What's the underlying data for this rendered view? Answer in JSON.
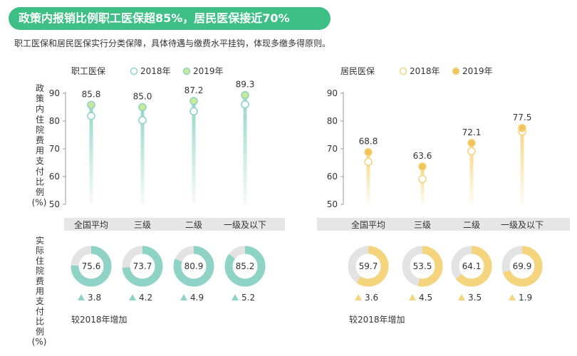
{
  "header": {
    "title": "政策内报销比例职工医保超85%，居民医保接近70%",
    "subtitle": "职工医保和居民医保实行分类保障，具体待遇与缴费水平挂钩，体现多缴多得原则。"
  },
  "shared": {
    "categories": [
      "全国平均",
      "三级",
      "二级",
      "一级及以下"
    ],
    "y_label_top": [
      "政",
      "策",
      "内",
      "住",
      "院",
      "费",
      "用",
      "支",
      "付",
      "比",
      "例",
      "(%)"
    ],
    "y_label_bottom": [
      "实",
      "际",
      "住",
      "院",
      "费",
      "用",
      "支",
      "付",
      "比",
      "例",
      "(%)"
    ],
    "increase_note": "较2018年增加"
  },
  "colors": {
    "employee_accent": "#8fd3c7",
    "employee_2019_fill": "#c9e89a",
    "resident_accent": "#f4d47c",
    "resident_2019_fill": "#f1c35a",
    "donut_track": "#e3e3e3",
    "banner": "#3dbf86"
  },
  "chart_data": [
    {
      "type": "dot-lollipop",
      "panel": "employee",
      "legend_title": "职工医保",
      "legend_position": "top",
      "ylim": [
        50,
        90
      ],
      "yticks": [
        50,
        60,
        70,
        80,
        90
      ],
      "categories": [
        "全国平均",
        "三级",
        "二级",
        "一级及以下"
      ],
      "series": [
        {
          "name": "2018年",
          "values": [
            81.8,
            80.3,
            83.5,
            86.0
          ]
        },
        {
          "name": "2019年",
          "values": [
            85.8,
            85.0,
            87.2,
            89.3
          ]
        }
      ],
      "labels_2019": [
        "85.8",
        "85.0",
        "87.2",
        "89.3"
      ]
    },
    {
      "type": "dot-lollipop",
      "panel": "resident",
      "legend_title": "居民医保",
      "legend_position": "top",
      "ylim": [
        50,
        90
      ],
      "yticks": [
        50,
        60,
        70,
        80,
        90
      ],
      "categories": [
        "全国平均",
        "三级",
        "二级",
        "一级及以下"
      ],
      "series": [
        {
          "name": "2018年",
          "values": [
            65.3,
            59.1,
            69.1,
            76.2
          ]
        },
        {
          "name": "2019年",
          "values": [
            68.8,
            63.6,
            72.1,
            77.5
          ]
        }
      ],
      "labels_2019": [
        "68.8",
        "63.6",
        "72.1",
        "77.5"
      ]
    },
    {
      "type": "pie",
      "panel": "employee-actual",
      "categories": [
        "全国平均",
        "三级",
        "二级",
        "一级及以下"
      ],
      "values": [
        75.6,
        73.7,
        80.9,
        85.2
      ],
      "labels": [
        "75.6",
        "73.7",
        "80.9",
        "85.2"
      ],
      "increase": [
        "3.8",
        "4.2",
        "4.9",
        "5.2"
      ]
    },
    {
      "type": "pie",
      "panel": "resident-actual",
      "categories": [
        "全国平均",
        "三级",
        "二级",
        "一级及以下"
      ],
      "values": [
        59.7,
        53.5,
        64.1,
        69.9
      ],
      "labels": [
        "59.7",
        "53.5",
        "64.1",
        "69.9"
      ],
      "increase": [
        "3.6",
        "4.5",
        "3.5",
        "1.9"
      ]
    }
  ]
}
